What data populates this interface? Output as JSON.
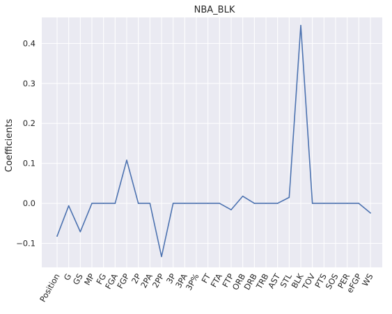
{
  "chart_data": {
    "type": "line",
    "title": "NBA_BLK",
    "xlabel": "",
    "ylabel": "Coefficients",
    "categories": [
      "Position",
      "G",
      "GS",
      "MP",
      "FG",
      "FGA",
      "FGP",
      "2P",
      "2PA",
      "2PP",
      "3P",
      "3PA",
      "3P%",
      "FT",
      "FTA",
      "FTP",
      "ORB",
      "DRB",
      "TRB",
      "AST",
      "STL",
      "BLK",
      "TOV",
      "PTS",
      "SOS",
      "PER",
      "eFGP",
      "WS"
    ],
    "series": [
      {
        "values": [
          -0.082,
          -0.006,
          -0.071,
          0.0,
          0.0,
          0.0,
          0.108,
          0.0,
          0.0,
          -0.133,
          0.0,
          0.0,
          0.0,
          0.0,
          0.0,
          -0.016,
          0.018,
          0.0,
          0.0,
          0.0,
          0.015,
          0.445,
          0.0,
          0.0,
          0.0,
          0.0,
          0.0,
          -0.024
        ]
      }
    ],
    "ylim": [
      -0.16,
      0.465
    ],
    "yticks": [
      -0.1,
      0.0,
      0.1,
      0.2,
      0.3,
      0.4
    ],
    "ytick_labels": [
      "−0.1",
      "0.0",
      "0.1",
      "0.2",
      "0.3",
      "0.4"
    ],
    "grid": true,
    "legend": "none",
    "colors": {
      "line": "#4c72b0",
      "plot_background": "#eaeaf2",
      "grid": "#ffffff"
    }
  }
}
